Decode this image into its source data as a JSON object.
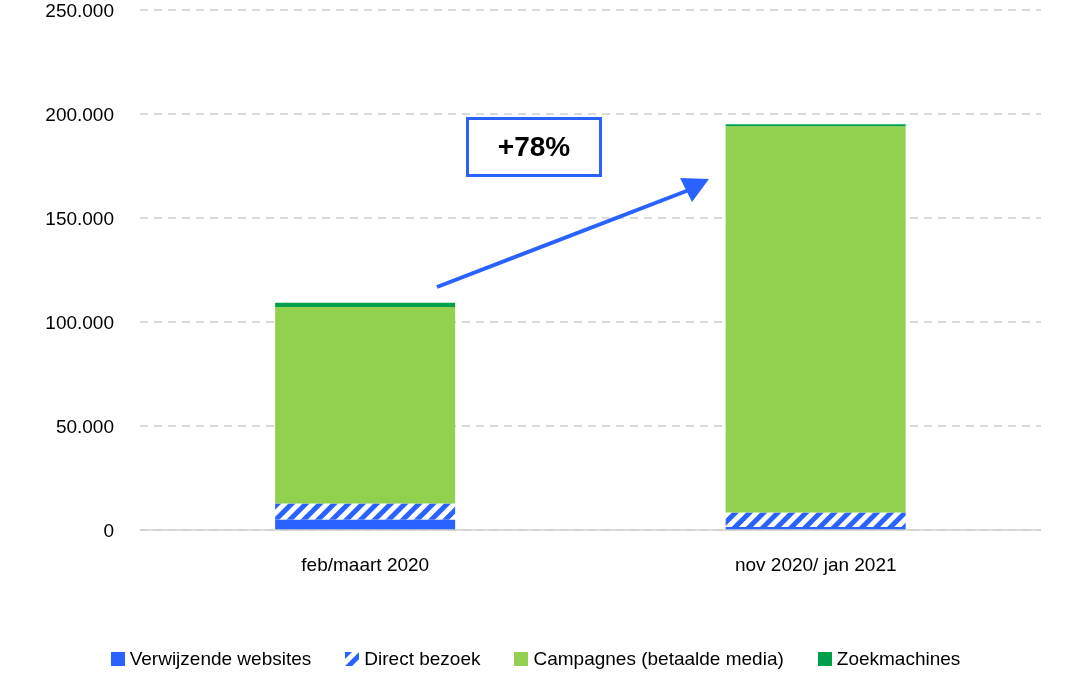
{
  "chart_data": {
    "type": "bar",
    "stacked": true,
    "categories": [
      "feb/maart 2020",
      "nov 2020/ jan 2021"
    ],
    "series": [
      {
        "name": "Verwijzende websites",
        "color": "#2962ff",
        "values": [
          5000,
          1500
        ]
      },
      {
        "name": "Direct bezoek",
        "color": "#2962ff",
        "values": [
          7700,
          6900
        ]
      },
      {
        "name": "Campagnes (betaalde media)",
        "color": "#92d050",
        "values": [
          94500,
          185700
        ]
      },
      {
        "name": "Zoekmachines",
        "color": "#00a04a",
        "values": [
          2000,
          1000
        ]
      }
    ],
    "ylim": [
      0,
      250000
    ],
    "yticks": [
      {
        "value": 0,
        "label": "0"
      },
      {
        "value": 50000,
        "label": "50.000"
      },
      {
        "value": 100000,
        "label": "100.000"
      },
      {
        "value": 150000,
        "label": "150.000"
      },
      {
        "value": 200000,
        "label": "200.000"
      },
      {
        "value": 250000,
        "label": "250.000"
      }
    ],
    "grid": "y",
    "legend": "bottom",
    "annotations": [
      "+78%"
    ]
  }
}
